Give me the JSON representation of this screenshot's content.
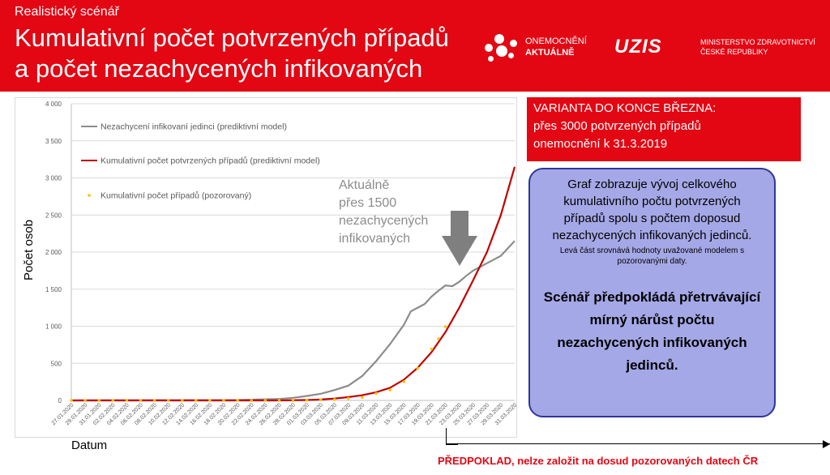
{
  "header": {
    "pretitle": "Realistický scénář",
    "title_line1": "Kumulativní počet potvrzených případů",
    "title_line2": "a počet nezachycených infikovaných",
    "logo1_line1": "ONEMOCNĚNÍ",
    "logo1_line2": "AKTUÁLNĚ",
    "logo2_word": "UZIS",
    "logo2_line1": "MINISTERSTVO ZDRAVOTNICTVÍ",
    "logo2_line2": "ČESKÉ REPUBLIKY"
  },
  "annotation": {
    "line1": "Aktuálně",
    "line2": "přes 1500",
    "line3": "nezachycených",
    "line4": "infikovaných"
  },
  "variant": {
    "line1": "VARIANTA DO KONCE BŘEZNA:",
    "line2": "přes 3000 potvrzených případů",
    "line3": "onemocnění k 31.3.2019"
  },
  "info": {
    "main": "Graf zobrazuje vývoj celkového kumulativního počtu potvrzených případů spolu s počtem doposud nezachycených infikovaných jedinců.",
    "small": "Levá část srovnává hodnoty uvažované modelem s pozorovanými daty.",
    "bold": "Scénář předpokládá přetrvávající mírný nárůst počtu nezachycených infikovaných jedinců."
  },
  "footnote": "PŘEDPOKLAD, nelze založit na dosud pozorovaných datech ČR",
  "colors": {
    "brand_red": "#e30613",
    "grey_series": "#8c8c8c",
    "red_series": "#c00000",
    "yellow_series": "#ffc000",
    "info_fill": "#a5a8e6",
    "info_border": "#2f3599"
  },
  "icons": {
    "down_arrow": "down-arrow-icon"
  },
  "chart_data": {
    "type": "line",
    "xlabel": "Datum",
    "ylabel": "Počet osob",
    "ylim": [
      0,
      4000
    ],
    "yticks": [
      0,
      500,
      1000,
      1500,
      2000,
      2500,
      3000,
      3500,
      4000
    ],
    "ytick_labels": [
      "0",
      "500",
      "1 000",
      "1 500",
      "2 000",
      "2 500",
      "3 000",
      "3 500",
      "4 000"
    ],
    "x_tick_labels": [
      "27.01.2020",
      "29.01.2020",
      "31.01.2020",
      "02.02.2020",
      "04.02.2020",
      "06.02.2020",
      "08.02.2020",
      "10.02.2020",
      "12.02.2020",
      "14.02.2020",
      "16.02.2020",
      "18.02.2020",
      "20.02.2020",
      "22.02.2020",
      "24.02.2020",
      "26.02.2020",
      "28.02.2020",
      "01.03.2020",
      "03.03.2020",
      "05.03.2020",
      "07.03.2020",
      "09.03.2020",
      "11.03.2020",
      "13.03.2020",
      "15.03.2020",
      "17.03.2020",
      "19.03.2020",
      "21.03.2020",
      "23.03.2020",
      "25.03.2020",
      "27.03.2020",
      "29.03.2020",
      "31.03.2020"
    ],
    "x_dates_start": "27.01.2020",
    "x_dates_end": "31.03.2020",
    "grid": true,
    "legend_position": "top-left",
    "series": [
      {
        "name": "Nezachycení infikovaní jedinci (prediktivní model)",
        "style": "line",
        "points": [
          [
            "27.01.2020",
            0
          ],
          [
            "20.02.2020",
            5
          ],
          [
            "26.02.2020",
            20
          ],
          [
            "28.02.2020",
            35
          ],
          [
            "01.03.2020",
            60
          ],
          [
            "03.03.2020",
            90
          ],
          [
            "05.03.2020",
            140
          ],
          [
            "07.03.2020",
            200
          ],
          [
            "09.03.2020",
            330
          ],
          [
            "11.03.2020",
            530
          ],
          [
            "13.03.2020",
            760
          ],
          [
            "15.03.2020",
            1020
          ],
          [
            "16.03.2020",
            1200
          ],
          [
            "17.03.2020",
            1250
          ],
          [
            "18.03.2020",
            1300
          ],
          [
            "19.03.2020",
            1400
          ],
          [
            "20.03.2020",
            1480
          ],
          [
            "21.03.2020",
            1550
          ],
          [
            "22.03.2020",
            1540
          ],
          [
            "23.03.2020",
            1600
          ],
          [
            "24.03.2020",
            1680
          ],
          [
            "25.03.2020",
            1750
          ],
          [
            "26.03.2020",
            1800
          ],
          [
            "27.03.2020",
            1850
          ],
          [
            "28.03.2020",
            1900
          ],
          [
            "29.03.2020",
            1950
          ],
          [
            "30.03.2020",
            2050
          ],
          [
            "31.03.2020",
            2150
          ]
        ]
      },
      {
        "name": "Kumulativní počet potvrzených případů (prediktivní model)",
        "style": "line",
        "points": [
          [
            "27.01.2020",
            0
          ],
          [
            "26.02.2020",
            0
          ],
          [
            "01.03.2020",
            5
          ],
          [
            "03.03.2020",
            12
          ],
          [
            "05.03.2020",
            25
          ],
          [
            "07.03.2020",
            45
          ],
          [
            "09.03.2020",
            70
          ],
          [
            "11.03.2020",
            110
          ],
          [
            "13.03.2020",
            170
          ],
          [
            "15.03.2020",
            280
          ],
          [
            "17.03.2020",
            440
          ],
          [
            "19.03.2020",
            650
          ],
          [
            "21.03.2020",
            920
          ],
          [
            "23.03.2020",
            1250
          ],
          [
            "25.03.2020",
            1620
          ],
          [
            "27.03.2020",
            2000
          ],
          [
            "29.03.2020",
            2500
          ],
          [
            "31.03.2020",
            3150
          ]
        ]
      },
      {
        "name": "Kumulativní počet případů (pozorovaný)",
        "style": "dots",
        "points": [
          [
            "27.01.2020",
            0
          ],
          [
            "29.01.2020",
            0
          ],
          [
            "31.01.2020",
            0
          ],
          [
            "02.02.2020",
            0
          ],
          [
            "04.02.2020",
            0
          ],
          [
            "06.02.2020",
            0
          ],
          [
            "08.02.2020",
            0
          ],
          [
            "10.02.2020",
            0
          ],
          [
            "12.02.2020",
            0
          ],
          [
            "14.02.2020",
            0
          ],
          [
            "16.02.2020",
            0
          ],
          [
            "18.02.2020",
            0
          ],
          [
            "20.02.2020",
            0
          ],
          [
            "22.02.2020",
            0
          ],
          [
            "24.02.2020",
            0
          ],
          [
            "26.02.2020",
            0
          ],
          [
            "28.02.2020",
            0
          ],
          [
            "01.03.2020",
            3
          ],
          [
            "03.03.2020",
            8
          ],
          [
            "05.03.2020",
            12
          ],
          [
            "07.03.2020",
            26
          ],
          [
            "09.03.2020",
            40
          ],
          [
            "11.03.2020",
            94
          ],
          [
            "13.03.2020",
            141
          ],
          [
            "15.03.2020",
            253
          ],
          [
            "17.03.2020",
            434
          ],
          [
            "19.03.2020",
            694
          ],
          [
            "20.03.2020",
            833
          ],
          [
            "21.03.2020",
            995
          ]
        ]
      }
    ]
  }
}
